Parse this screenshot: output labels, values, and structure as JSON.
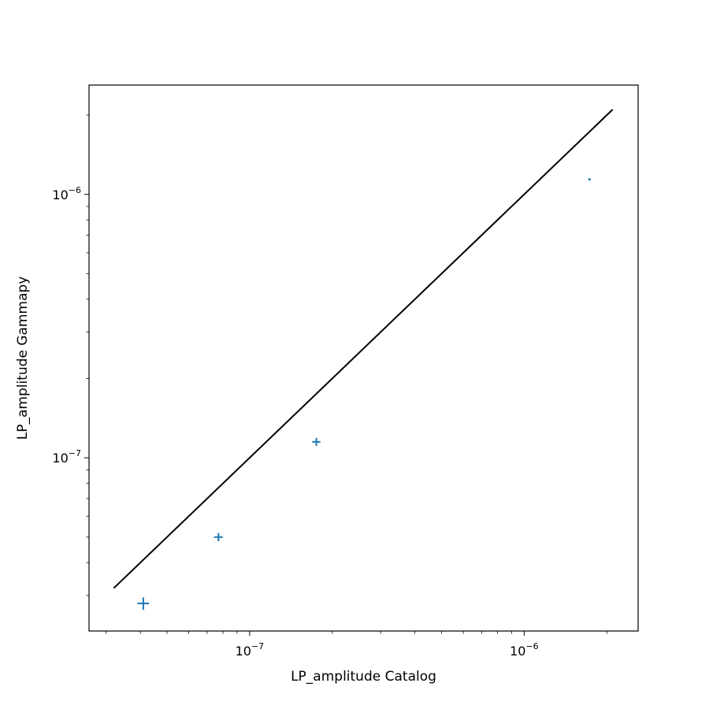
{
  "chart_data": {
    "type": "scatter",
    "title": "",
    "xlabel": "LP_amplitude Catalog",
    "ylabel": "LP_amplitude Gammapy",
    "xscale": "log",
    "yscale": "log",
    "xlim": [
      2.6e-08,
      2.6e-06
    ],
    "ylim": [
      2.2e-08,
      2.6e-06
    ],
    "x_tick_labels": [
      {
        "value": 1e-07,
        "base": "10",
        "exp": "−7"
      },
      {
        "value": 1e-06,
        "base": "10",
        "exp": "−6"
      }
    ],
    "y_tick_labels": [
      {
        "value": 1e-07,
        "base": "10",
        "exp": "−7"
      },
      {
        "value": 1e-06,
        "base": "10",
        "exp": "−6"
      }
    ],
    "reference_line": {
      "x": [
        3.2e-08,
        2.1e-06
      ],
      "y": [
        3.2e-08,
        2.1e-06
      ],
      "color": "#000000"
    },
    "points": [
      {
        "x": 4.1e-08,
        "y": 2.8e-08,
        "xerr": 2e-09,
        "yerr": 1.5e-09
      },
      {
        "x": 7.7e-08,
        "y": 5e-08,
        "xerr": 2.8e-09,
        "yerr": 1.8e-09
      },
      {
        "x": 1.75e-07,
        "y": 1.15e-07,
        "xerr": 6e-09,
        "yerr": 4e-09
      },
      {
        "x": 1.73e-06,
        "y": 1.14e-06,
        "xerr": 2e-08,
        "yerr": 1e-08
      }
    ],
    "marker_color": "#1f77b4",
    "grid": false
  }
}
